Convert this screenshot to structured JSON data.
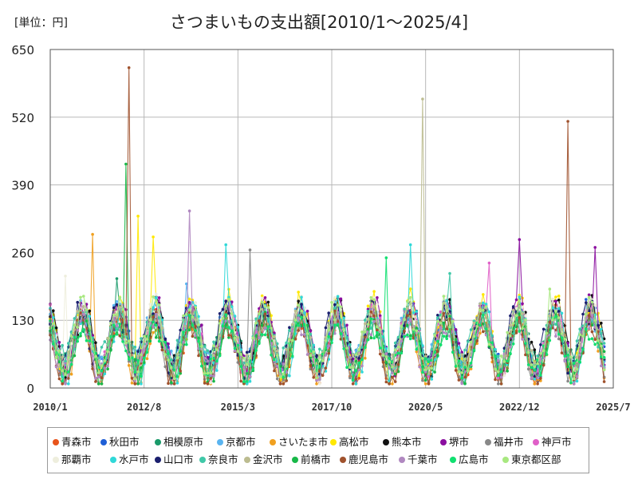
{
  "unit_label": "[単位：円]",
  "chart_data": {
    "type": "line",
    "title": "さつまいもの支出額[2010/1～2025/4]",
    "xlabel": "",
    "ylabel": "",
    "ylim": [
      0,
      650
    ],
    "yticks": [
      0,
      130,
      260,
      390,
      520,
      650
    ],
    "xlim": [
      "2010-01",
      "2025-07"
    ],
    "xticks": [
      "2010/1",
      "2012/8",
      "2015/3",
      "2017/10",
      "2020/5",
      "2022/12",
      "2025/7"
    ],
    "grid": true,
    "legend_position": "bottom",
    "series": [
      {
        "name": "青森市",
        "color": "#e8541c",
        "peaks": [
          {
            "x": "2010-11",
            "y": 150
          }
        ]
      },
      {
        "name": "秋田市",
        "color": "#1f5fd6",
        "peaks": [
          {
            "x": "2024-10",
            "y": 170
          }
        ]
      },
      {
        "name": "相模原市",
        "color": "#1a9a6a",
        "peaks": [
          {
            "x": "2011-11",
            "y": 210
          }
        ]
      },
      {
        "name": "京都市",
        "color": "#5ab4f0",
        "peaks": [
          {
            "x": "2013-10",
            "y": 200
          }
        ]
      },
      {
        "name": "さいたま市",
        "color": "#f0a020",
        "peaks": [
          {
            "x": "2011-03",
            "y": 295
          }
        ]
      },
      {
        "name": "高松市",
        "color": "#ffe800",
        "peaks": [
          {
            "x": "2012-06",
            "y": 330
          },
          {
            "x": "2012-11",
            "y": 290
          }
        ]
      },
      {
        "name": "熊本市",
        "color": "#111111",
        "peaks": [
          {
            "x": "2016-01",
            "y": 165
          }
        ]
      },
      {
        "name": "堺市",
        "color": "#8b0fa0",
        "peaks": [
          {
            "x": "2022-12",
            "y": 285
          },
          {
            "x": "2025-01",
            "y": 270
          }
        ]
      },
      {
        "name": "福井市",
        "color": "#888888",
        "peaks": [
          {
            "x": "2015-07",
            "y": 265
          }
        ]
      },
      {
        "name": "神戸市",
        "color": "#e060c8",
        "peaks": [
          {
            "x": "2022-02",
            "y": 240
          }
        ]
      },
      {
        "name": "那覇市",
        "color": "#eeeedd",
        "peaks": [
          {
            "x": "2010-06",
            "y": 215
          }
        ]
      },
      {
        "name": "水戸市",
        "color": "#30d8d8",
        "peaks": [
          {
            "x": "2014-11",
            "y": 275
          },
          {
            "x": "2019-12",
            "y": 275
          }
        ]
      },
      {
        "name": "山口市",
        "color": "#1a1f6e",
        "peaks": [
          {
            "x": "2011-11",
            "y": 160
          }
        ]
      },
      {
        "name": "奈良市",
        "color": "#40c8a8",
        "peaks": [
          {
            "x": "2021-01",
            "y": 220
          }
        ]
      },
      {
        "name": "金沢市",
        "color": "#bcbc90",
        "peaks": [
          {
            "x": "2020-04",
            "y": 555
          }
        ]
      },
      {
        "name": "前橋市",
        "color": "#18b848",
        "peaks": [
          {
            "x": "2012-02",
            "y": 430
          }
        ]
      },
      {
        "name": "鹿児島市",
        "color": "#a0522d",
        "peaks": [
          {
            "x": "2012-03",
            "y": 615
          },
          {
            "x": "2024-04",
            "y": 512
          }
        ]
      },
      {
        "name": "千葉市",
        "color": "#b088c0",
        "peaks": [
          {
            "x": "2013-11",
            "y": 340
          }
        ]
      },
      {
        "name": "広島市",
        "color": "#10e070",
        "peaks": [
          {
            "x": "2019-04",
            "y": 250
          }
        ]
      },
      {
        "name": "東京都区部",
        "color": "#a8e880",
        "peaks": [
          {
            "x": "2023-10",
            "y": 190
          }
        ]
      }
    ]
  }
}
